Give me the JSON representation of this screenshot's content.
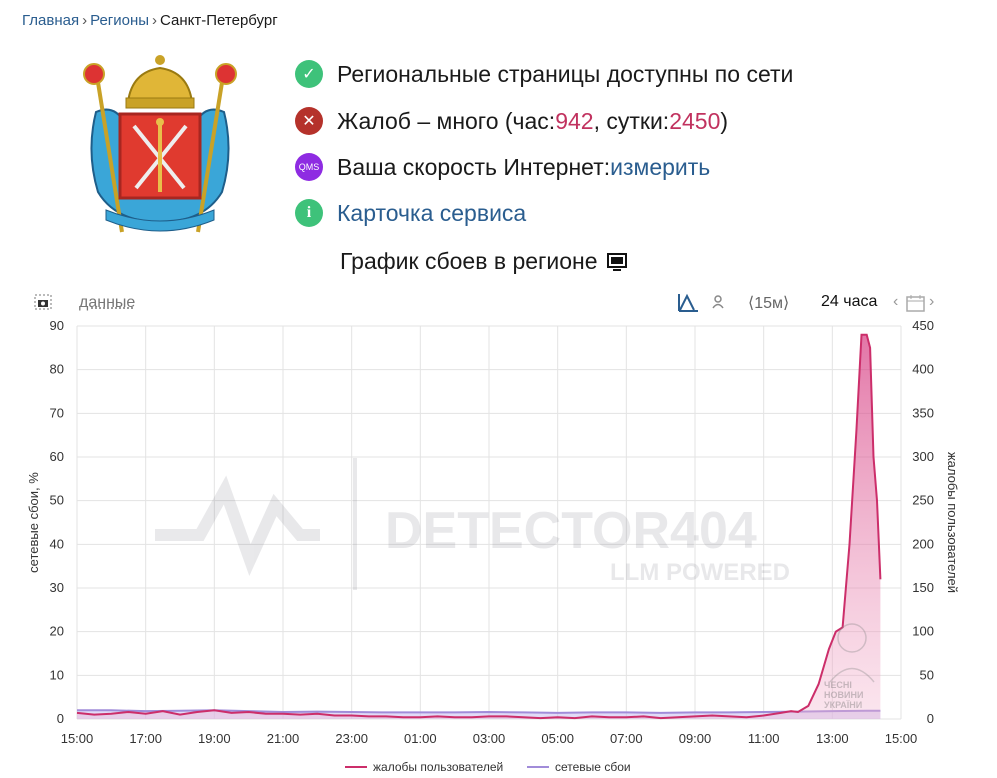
{
  "breadcrumb": {
    "home": "Главная",
    "regions": "Регионы",
    "current": "Санкт-Петербург"
  },
  "status": {
    "available": "Региональные страницы доступны по сети",
    "complaints_prefix": "Жалоб – много (час: ",
    "complaints_hour": "942",
    "complaints_mid": ", сутки: ",
    "complaints_day": "2450",
    "complaints_suffix": ")",
    "speed_label": "Ваша скорость Интернет: ",
    "speed_link": "измерить",
    "speed_icon_text": "QMS",
    "service_card": "Карточка сервиса"
  },
  "chart_header": {
    "title": "График сбоев в регионе",
    "data_link": "данные",
    "interval_15m": "⟨15м⟩",
    "interval_24h": "24 часа"
  },
  "colors": {
    "complaints": "#cc2e6a",
    "failures": "#a18cd9",
    "ok_green": "#3ec27a",
    "error_red": "#c0392b",
    "qms_purple": "#8e2be2",
    "info_green": "#3ec27a",
    "link_blue": "#2a5d8f"
  },
  "icons": {
    "available": "check-circle-icon",
    "complaints": "x-circle-icon",
    "speed": "qms-icon",
    "service": "info-circle-icon",
    "title": "monitor-icon"
  },
  "watermark": {
    "line1": "DETECTOR404",
    "line2": "LLM POWERED",
    "badge": "ЧЕСНІ НОВИНИ УКРАЇНИ"
  },
  "chart_data": {
    "type": "area",
    "xlabels": [
      "15:00",
      "17:00",
      "19:00",
      "21:00",
      "23:00",
      "01:00",
      "03:00",
      "05:00",
      "07:00",
      "09:00",
      "11:00",
      "13:00",
      "15:00"
    ],
    "ylabel_left": "сетевые сбои, %",
    "ylabel_right": "жалобы пользователей",
    "yticks_left": [
      0,
      10,
      20,
      30,
      40,
      50,
      60,
      70,
      80,
      90
    ],
    "yticks_right": [
      0,
      50,
      100,
      150,
      200,
      250,
      300,
      350,
      400,
      450
    ],
    "ylim_left": [
      0,
      90
    ],
    "ylim_right": [
      0,
      450
    ],
    "grid": true,
    "series": [
      {
        "name": "жалобы пользователей",
        "axis": "right",
        "x_hours": [
          0,
          0.5,
          1,
          1.5,
          2,
          2.5,
          3,
          3.5,
          4,
          4.5,
          5,
          5.5,
          6,
          6.5,
          7,
          7.5,
          8,
          8.5,
          9,
          9.5,
          10,
          10.5,
          11,
          11.5,
          12,
          12.5,
          13,
          13.5,
          14,
          14.5,
          15,
          15.5,
          16,
          16.5,
          17,
          17.5,
          18,
          18.5,
          19,
          19.5,
          20,
          20.5,
          20.8,
          21,
          21.3,
          21.6,
          21.9,
          22.1,
          22.3,
          22.5,
          22.7,
          22.85,
          23,
          23.1,
          23.2,
          23.3,
          23.4
        ],
        "values": [
          7,
          5,
          6,
          8,
          6,
          9,
          5,
          8,
          10,
          7,
          8,
          6,
          6,
          5,
          6,
          4,
          4,
          3,
          3,
          2,
          2,
          3,
          2,
          2,
          3,
          3,
          2,
          1,
          2,
          1,
          3,
          2,
          2,
          3,
          1,
          2,
          3,
          4,
          3,
          2,
          4,
          7,
          9,
          8,
          15,
          40,
          80,
          100,
          105,
          200,
          330,
          440,
          440,
          425,
          300,
          250,
          160
        ]
      },
      {
        "name": "сетевые сбои",
        "axis": "left",
        "x_hours": [
          0,
          1,
          2,
          3,
          4,
          5,
          6,
          7,
          8,
          9,
          10,
          11,
          12,
          13,
          14,
          15,
          16,
          17,
          18,
          19,
          20,
          21,
          22,
          23,
          23.4
        ],
        "values": [
          2,
          2,
          1.8,
          1.9,
          2,
          1.8,
          1.6,
          1.7,
          1.6,
          1.5,
          1.5,
          1.5,
          1.6,
          1.5,
          1.4,
          1.5,
          1.5,
          1.4,
          1.5,
          1.5,
          1.6,
          1.7,
          1.8,
          1.9,
          1.9
        ]
      }
    ]
  }
}
